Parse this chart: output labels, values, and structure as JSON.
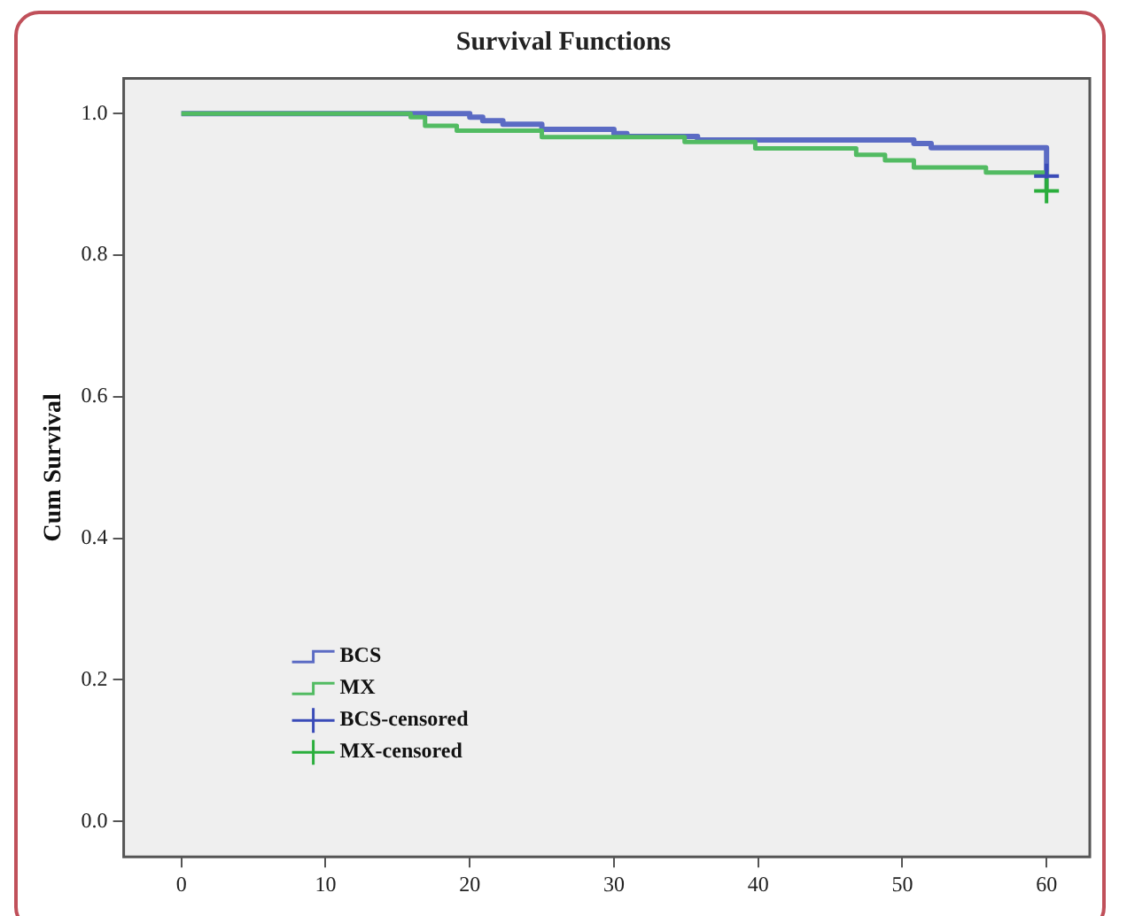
{
  "chart_data": {
    "type": "step",
    "title": "Survival Functions",
    "ylabel": "Cum Survival",
    "xlim": [
      -4,
      63
    ],
    "xticks": [
      0,
      10,
      20,
      30,
      40,
      50,
      60
    ],
    "ylim": [
      -0.05,
      1.05
    ],
    "yticks": [
      {
        "value": 0,
        "label": "0.0"
      },
      {
        "value": 0.2,
        "label": "0.2"
      },
      {
        "value": 0.4,
        "label": "0.4"
      },
      {
        "value": 0.6,
        "label": "0.6"
      },
      {
        "value": 0.8,
        "label": "0.8"
      },
      {
        "value": 1,
        "label": "1.0"
      }
    ],
    "grid": false,
    "legend": "bottom left",
    "series": [
      {
        "name": "BCS",
        "type": "step",
        "color": "#5b6bc4",
        "marker": "none",
        "x": [
          0,
          20,
          20.9,
          22.3,
          25,
          30,
          30.9,
          35.8,
          50.8,
          52,
          60,
          60
        ],
        "values": [
          1,
          0.995,
          0.99,
          0.985,
          0.978,
          0.972,
          0.968,
          0.963,
          0.958,
          0.952,
          0.952,
          0.912
        ]
      },
      {
        "name": "MX",
        "type": "step",
        "color": "#52bb62",
        "marker": "none",
        "x": [
          0,
          15.9,
          16.9,
          19.1,
          25,
          34.9,
          39.8,
          46.8,
          48.8,
          50.8,
          55.8,
          60,
          60
        ],
        "values": [
          1,
          0.995,
          0.983,
          0.976,
          0.967,
          0.96,
          0.951,
          0.942,
          0.934,
          0.924,
          0.917,
          0.917,
          0.891
        ]
      },
      {
        "name": "BCS-censored",
        "type": "scatter",
        "color": "#3a4bb8",
        "marker": "cross",
        "x": [
          60
        ],
        "values": [
          0.912
        ]
      },
      {
        "name": "MX-censored",
        "type": "scatter",
        "color": "#2aae3c",
        "marker": "cross",
        "x": [
          60
        ],
        "values": [
          0.891
        ]
      }
    ]
  }
}
